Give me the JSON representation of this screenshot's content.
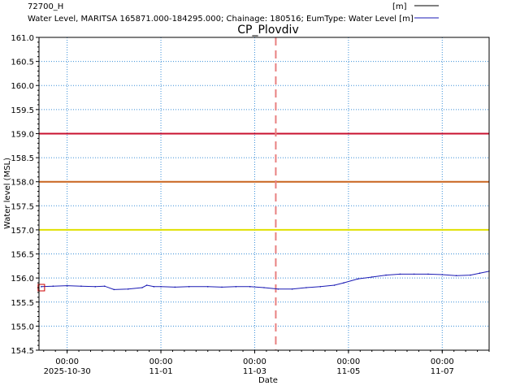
{
  "chart_data": {
    "type": "line",
    "title": "CP_Plovdiv",
    "xlabel": "Date",
    "ylabel": "Water level (MSL)",
    "ylim": [
      154.5,
      161.0
    ],
    "y_ticks": [
      "161.0",
      "160.5",
      "160.0",
      "159.5",
      "159.0",
      "158.5",
      "158.0",
      "157.5",
      "157.0",
      "156.5",
      "156.0",
      "155.5",
      "155.0",
      "154.5"
    ],
    "xlim_days": [
      -0.6,
      9.0
    ],
    "x_ticks": [
      {
        "day": 0,
        "time": "00:00",
        "date": "2025-10-30"
      },
      {
        "day": 2,
        "time": "00:00",
        "date": "11-01"
      },
      {
        "day": 4,
        "time": "00:00",
        "date": "11-03"
      },
      {
        "day": 6,
        "time": "00:00",
        "date": "11-05"
      },
      {
        "day": 8,
        "time": "00:00",
        "date": "11-07"
      }
    ],
    "grid": true,
    "legend": [
      {
        "label": "72700_H",
        "unit": "[m]",
        "color": "#000000"
      },
      {
        "label": "Water Level, MARITSA 165871.000-184295.000; Chainage: 180516; EumType: Water Level [m]",
        "unit": "",
        "color": "#1a1ab4"
      }
    ],
    "threshold_lines": [
      {
        "value": 159.0,
        "color": "#c8102e"
      },
      {
        "value": 158.0,
        "color": "#c8641e"
      },
      {
        "value": 157.0,
        "color": "#e0e000"
      }
    ],
    "current_time_day": 4.45,
    "observed_marker": {
      "x": -0.55,
      "y": 155.8,
      "color": "#cc0000"
    },
    "series": [
      {
        "color": "#1a1ab4",
        "x": [
          -0.55,
          -0.3,
          0.0,
          0.3,
          0.6,
          0.8,
          1.0,
          1.3,
          1.6,
          1.7,
          1.85,
          2.0,
          2.3,
          2.6,
          3.0,
          3.3,
          3.6,
          3.9,
          4.2,
          4.5,
          4.8,
          5.1,
          5.4,
          5.7,
          5.9,
          6.2,
          6.5,
          6.8,
          7.1,
          7.4,
          7.7,
          8.0,
          8.3,
          8.6,
          8.8,
          9.0
        ],
        "y": [
          155.82,
          155.83,
          155.84,
          155.83,
          155.82,
          155.83,
          155.76,
          155.77,
          155.8,
          155.85,
          155.82,
          155.82,
          155.81,
          155.82,
          155.82,
          155.81,
          155.82,
          155.82,
          155.8,
          155.77,
          155.77,
          155.8,
          155.82,
          155.85,
          155.9,
          155.98,
          156.02,
          156.06,
          156.08,
          156.08,
          156.08,
          156.07,
          156.05,
          156.06,
          156.1,
          156.14
        ]
      }
    ]
  }
}
